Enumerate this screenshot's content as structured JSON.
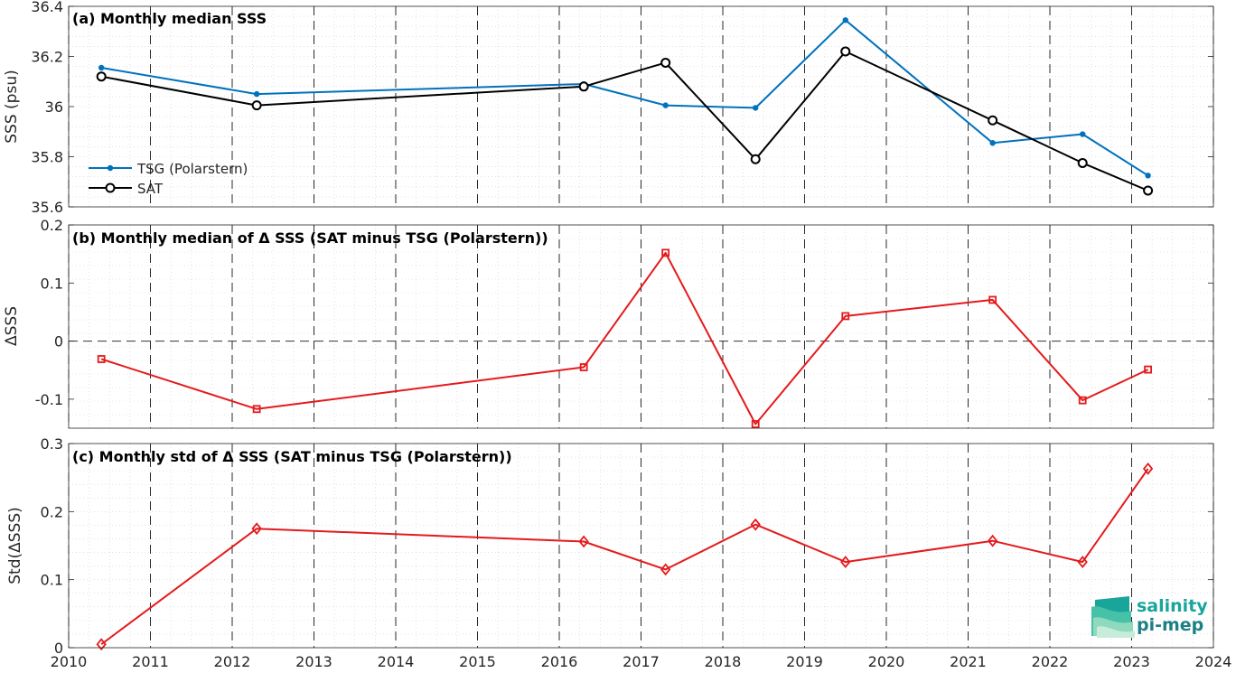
{
  "chart_data": [
    {
      "type": "line",
      "title": "(a) Monthly median SSS",
      "ylabel": "SSS (psu)",
      "xlim": [
        2010,
        2024
      ],
      "ylim": [
        35.6,
        36.4
      ],
      "xticks": [
        "2010",
        "2011",
        "2012",
        "2013",
        "2014",
        "2015",
        "2016",
        "2017",
        "2018",
        "2019",
        "2020",
        "2021",
        "2022",
        "2023",
        "2024"
      ],
      "yticks": [
        "35.6",
        "35.8",
        "36",
        "36.2",
        "36.4"
      ],
      "grid": true,
      "legend": "middle-left",
      "series": [
        {
          "name": "TSG (Polarstern)",
          "color": "#0072bd",
          "marker": "dot",
          "x": [
            2010.4,
            2012.3,
            2016.3,
            2017.3,
            2018.4,
            2019.5,
            2021.3,
            2022.4,
            2023.2
          ],
          "y": [
            36.155,
            36.05,
            36.09,
            36.005,
            35.995,
            36.345,
            35.855,
            35.89,
            35.725
          ]
        },
        {
          "name": "SAT",
          "color": "#000000",
          "marker": "circle",
          "x": [
            2010.4,
            2012.3,
            2016.3,
            2017.3,
            2018.4,
            2019.5,
            2021.3,
            2022.4,
            2023.2
          ],
          "y": [
            36.12,
            36.005,
            36.08,
            36.175,
            35.79,
            36.22,
            35.945,
            35.775,
            35.665
          ]
        }
      ]
    },
    {
      "type": "line",
      "title": "(b) Monthly median of Δ SSS (SAT minus TSG (Polarstern))",
      "ylabel": "ΔSSS",
      "xlim": [
        2010,
        2024
      ],
      "ylim": [
        -0.15,
        0.2
      ],
      "xticks": [
        "2010",
        "2011",
        "2012",
        "2013",
        "2014",
        "2015",
        "2016",
        "2017",
        "2018",
        "2019",
        "2020",
        "2021",
        "2022",
        "2023",
        "2024"
      ],
      "yticks": [
        "-0.1",
        "0",
        "0.1",
        "0.2"
      ],
      "grid": true,
      "series": [
        {
          "color": "#e41a1c",
          "marker": "square",
          "x": [
            2010.4,
            2012.3,
            2016.3,
            2017.3,
            2018.4,
            2019.5,
            2021.3,
            2022.4,
            2023.2
          ],
          "y": [
            -0.031,
            -0.117,
            -0.045,
            0.152,
            -0.143,
            0.043,
            0.071,
            -0.102,
            -0.049
          ]
        }
      ]
    },
    {
      "type": "line",
      "title": "(c) Monthly std of Δ SSS (SAT minus TSG (Polarstern))",
      "ylabel": "Std(ΔSSS)",
      "xlim": [
        2010,
        2024
      ],
      "ylim": [
        0,
        0.3
      ],
      "xticks": [
        "2010",
        "2011",
        "2012",
        "2013",
        "2014",
        "2015",
        "2016",
        "2017",
        "2018",
        "2019",
        "2020",
        "2021",
        "2022",
        "2023",
        "2024"
      ],
      "yticks": [
        "0",
        "0.1",
        "0.2",
        "0.3"
      ],
      "grid": true,
      "series": [
        {
          "color": "#e41a1c",
          "marker": "diamond",
          "x": [
            2010.4,
            2012.3,
            2016.3,
            2017.3,
            2018.4,
            2019.5,
            2021.3,
            2022.4,
            2023.2
          ],
          "y": [
            0.005,
            0.175,
            0.156,
            0.115,
            0.181,
            0.126,
            0.157,
            0.126,
            0.263
          ]
        }
      ]
    }
  ],
  "logo": {
    "line1": "salinity",
    "line2": "pi-mep"
  }
}
